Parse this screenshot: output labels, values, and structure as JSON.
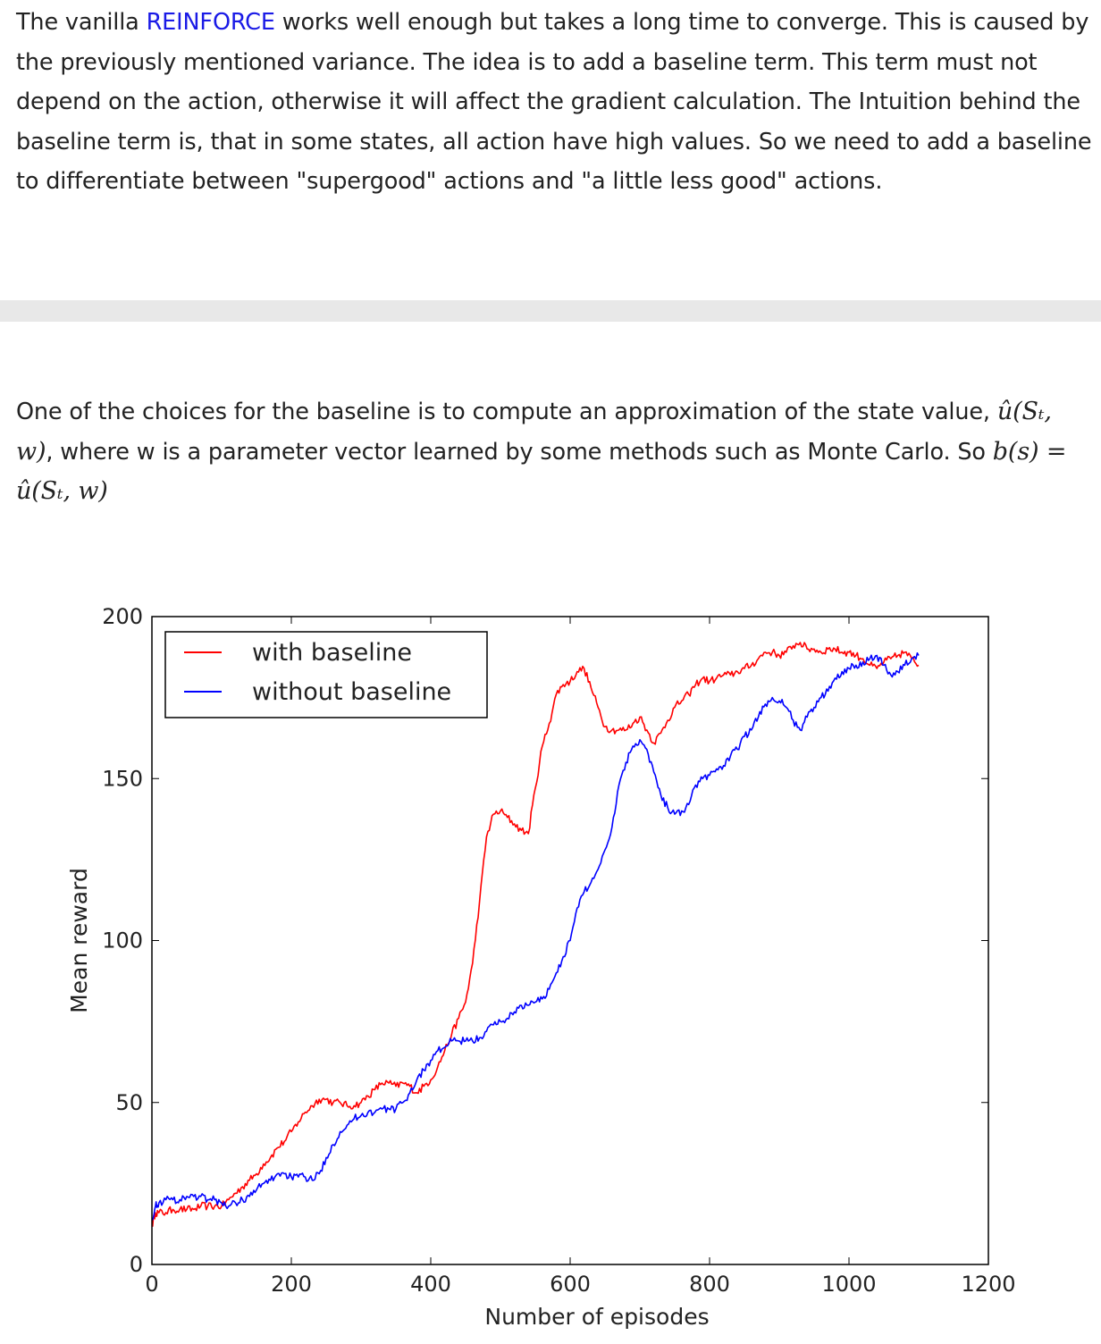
{
  "text": {
    "para1": {
      "before_link": "The vanilla ",
      "link": "REINFORCE",
      "after_link": " works well enough but takes a long time to converge. This is caused by the previously mentioned variance. The idea is to add a baseline term. This term must not depend on the action, otherwise it will affect the gradient calculation. The Intuition behind the baseline term is, that in some states, all action have high values. So we need to add a baseline to differentiate between \"supergood\" actions and \"a little less good\" actions."
    },
    "para2": {
      "part1": "One of the choices for the baseline is to compute an approximation of the state value, ",
      "math1": "û(Sₜ, w)",
      "part2": ", where w is a parameter vector learned by some methods such as Monte Carlo. So ",
      "math2": "b(s) = û(Sₜ, w)"
    }
  },
  "colors": {
    "link": "#1a1ae6",
    "with_baseline": "#ff0000",
    "without_baseline": "#0000ff",
    "divider": "#e8e8e8"
  },
  "chart_data": {
    "type": "line",
    "xlabel": "Number of episodes",
    "ylabel": "Mean reward",
    "xlim": [
      0,
      1200
    ],
    "ylim": [
      0,
      200
    ],
    "xticks": [
      0,
      200,
      400,
      600,
      800,
      1000,
      1200
    ],
    "yticks": [
      0,
      50,
      100,
      150,
      200
    ],
    "legend_position": "top-left",
    "grid": false,
    "series": [
      {
        "name": "with baseline",
        "color": "#ff0000",
        "x": [
          0,
          5,
          10,
          20,
          30,
          40,
          50,
          60,
          70,
          80,
          90,
          100,
          110,
          120,
          130,
          140,
          150,
          160,
          170,
          180,
          190,
          200,
          210,
          220,
          230,
          240,
          250,
          260,
          270,
          280,
          290,
          300,
          310,
          320,
          330,
          340,
          350,
          360,
          370,
          380,
          390,
          400,
          410,
          420,
          430,
          440,
          450,
          460,
          470,
          480,
          490,
          500,
          510,
          520,
          530,
          540,
          550,
          560,
          570,
          580,
          590,
          600,
          610,
          620,
          630,
          640,
          650,
          660,
          670,
          680,
          690,
          700,
          710,
          720,
          730,
          740,
          750,
          760,
          770,
          780,
          790,
          800,
          810,
          820,
          830,
          840,
          850,
          860,
          870,
          880,
          890,
          900,
          910,
          920,
          930,
          940,
          950,
          960,
          970,
          980,
          990,
          1000,
          1010,
          1020,
          1030,
          1040,
          1050,
          1060,
          1070,
          1080,
          1090,
          1100
        ],
        "y": [
          12,
          16,
          16,
          16,
          17,
          17,
          17,
          17,
          18,
          18,
          18,
          18,
          20,
          22,
          24,
          26,
          28,
          31,
          33,
          36,
          38,
          41,
          44,
          47,
          49,
          51,
          51,
          50,
          50,
          49,
          49,
          50,
          52,
          54,
          56,
          56,
          55,
          56,
          55,
          53,
          55,
          57,
          61,
          66,
          71,
          76,
          81,
          93,
          112,
          132,
          139,
          140,
          138,
          136,
          134,
          133,
          147,
          160,
          167,
          176,
          179,
          180,
          183,
          184,
          178,
          172,
          166,
          165,
          165,
          165,
          167,
          169,
          165,
          161,
          164,
          168,
          172,
          174,
          176,
          179,
          181,
          180,
          181,
          182,
          182,
          183,
          184,
          185,
          187,
          189,
          189,
          188,
          189,
          191,
          192,
          190,
          190,
          189,
          190,
          190,
          189,
          189,
          188,
          187,
          185,
          184,
          186,
          187,
          188,
          189,
          187,
          185
        ]
      },
      {
        "name": "without baseline",
        "color": "#0000ff",
        "x": [
          0,
          5,
          10,
          20,
          30,
          40,
          50,
          60,
          70,
          80,
          90,
          100,
          110,
          120,
          130,
          140,
          150,
          160,
          170,
          180,
          190,
          200,
          210,
          220,
          230,
          240,
          250,
          260,
          270,
          280,
          290,
          300,
          310,
          320,
          330,
          340,
          350,
          360,
          370,
          380,
          390,
          400,
          410,
          420,
          430,
          440,
          450,
          460,
          470,
          480,
          490,
          500,
          510,
          520,
          530,
          540,
          550,
          560,
          570,
          580,
          590,
          600,
          610,
          620,
          630,
          640,
          650,
          660,
          670,
          680,
          690,
          700,
          710,
          720,
          730,
          740,
          750,
          760,
          770,
          780,
          790,
          800,
          810,
          820,
          830,
          840,
          850,
          860,
          870,
          880,
          890,
          900,
          910,
          920,
          930,
          940,
          950,
          960,
          970,
          980,
          990,
          1000,
          1010,
          1020,
          1030,
          1040,
          1050,
          1060,
          1070,
          1080,
          1090,
          1100
        ],
        "y": [
          14,
          18,
          19,
          20,
          20,
          20,
          21,
          21,
          21,
          20,
          20,
          19,
          18,
          19,
          20,
          21,
          23,
          25,
          26,
          28,
          28,
          27,
          27,
          27,
          26,
          28,
          33,
          37,
          41,
          43,
          45,
          46,
          47,
          47,
          48,
          48,
          48,
          50,
          53,
          57,
          60,
          63,
          66,
          67,
          69,
          69,
          69,
          69,
          70,
          72,
          74,
          75,
          76,
          78,
          80,
          80,
          81,
          82,
          85,
          90,
          95,
          100,
          110,
          115,
          118,
          122,
          128,
          135,
          148,
          155,
          160,
          162,
          159,
          152,
          145,
          141,
          139,
          140,
          142,
          148,
          150,
          151,
          153,
          154,
          157,
          159,
          163,
          165,
          169,
          173,
          175,
          174,
          172,
          168,
          165,
          169,
          172,
          175,
          177,
          181,
          183,
          184,
          185,
          186,
          187,
          188,
          185,
          182,
          183,
          185,
          187,
          188
        ]
      }
    ]
  }
}
